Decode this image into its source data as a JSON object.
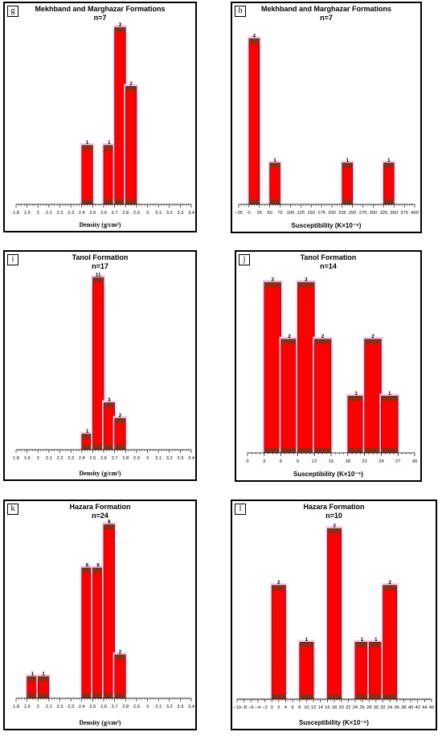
{
  "chart_data": [
    {
      "id": "g",
      "panel_label": "g",
      "type": "bar",
      "title": "Mekhband and Marghazar Formations",
      "subtitle": "n=7",
      "xlabel": "Density (g/cm³)",
      "x_ticks": [
        "1.8",
        "1.9",
        "2",
        "2.1",
        "2.2",
        "2.3",
        "2.4",
        "2.5",
        "2.6",
        "2.7",
        "2.8",
        "2.9",
        "3",
        "3.1",
        "3.2",
        "3.3",
        "3.4"
      ],
      "xlim": [
        1.8,
        3.4
      ],
      "ylim": [
        0,
        3
      ],
      "bars": [
        {
          "x0": 2.4,
          "x1": 2.5,
          "value": 1
        },
        {
          "x0": 2.6,
          "x1": 2.7,
          "value": 1
        },
        {
          "x0": 2.7,
          "x1": 2.8,
          "value": 3
        },
        {
          "x0": 2.8,
          "x1": 2.9,
          "value": 2
        }
      ],
      "bar_color": "#ff0000"
    },
    {
      "id": "h",
      "panel_label": "h",
      "type": "bar",
      "title": "Mekhband and Marghazar Formations",
      "subtitle": "n=7",
      "xlabel": "Susceptibility (K×10⁻⁵)",
      "x_ticks": [
        "−25",
        "0",
        "25",
        "50",
        "75",
        "100",
        "125",
        "150",
        "175",
        "200",
        "225",
        "250",
        "275",
        "300",
        "325",
        "350",
        "375",
        "400"
      ],
      "xlim": [
        -25,
        400
      ],
      "ylim": [
        0,
        4
      ],
      "bars": [
        {
          "x0": 0,
          "x1": 25,
          "value": 4
        },
        {
          "x0": 50,
          "x1": 75,
          "value": 1
        },
        {
          "x0": 225,
          "x1": 250,
          "value": 1
        },
        {
          "x0": 325,
          "x1": 350,
          "value": 1
        }
      ],
      "bar_color": "#ff0000"
    },
    {
      "id": "i",
      "panel_label": "i",
      "type": "bar",
      "title": "Tanol Formation",
      "subtitle": "n=17",
      "xlabel": "Density (g/cm³)",
      "x_ticks": [
        "1.8",
        "1.9",
        "2",
        "2.1",
        "2.2",
        "2.3",
        "2.4",
        "2.5",
        "2.6",
        "2.7",
        "2.8",
        "2.9",
        "3",
        "3.1",
        "3.2",
        "3.3",
        "3.4"
      ],
      "xlim": [
        1.8,
        3.4
      ],
      "ylim": [
        0,
        11
      ],
      "bars": [
        {
          "x0": 2.4,
          "x1": 2.5,
          "value": 1
        },
        {
          "x0": 2.5,
          "x1": 2.6,
          "value": 11
        },
        {
          "x0": 2.6,
          "x1": 2.7,
          "value": 3
        },
        {
          "x0": 2.7,
          "x1": 2.8,
          "value": 2
        }
      ],
      "bar_color": "#ff0000"
    },
    {
      "id": "j",
      "panel_label": "j",
      "type": "bar",
      "title": "Tanol Formation",
      "subtitle": "n=14",
      "xlabel": "Susceptibility (K×10⁻⁵)",
      "x_ticks": [
        "0",
        "3",
        "6",
        "9",
        "12",
        "15",
        "18",
        "21",
        "24",
        "27",
        "30"
      ],
      "xlim": [
        0,
        30
      ],
      "ylim": [
        0,
        3
      ],
      "bars": [
        {
          "x0": 3,
          "x1": 6,
          "value": 3
        },
        {
          "x0": 6,
          "x1": 9,
          "value": 2
        },
        {
          "x0": 9,
          "x1": 12,
          "value": 3
        },
        {
          "x0": 12,
          "x1": 15,
          "value": 2
        },
        {
          "x0": 18,
          "x1": 21,
          "value": 1
        },
        {
          "x0": 21,
          "x1": 24,
          "value": 2
        },
        {
          "x0": 24,
          "x1": 27,
          "value": 1
        }
      ],
      "bar_color": "#ff0000"
    },
    {
      "id": "k",
      "panel_label": "k",
      "type": "bar",
      "title": "Hazara Formation",
      "subtitle": "n=24",
      "xlabel": "Density (g/cm³)",
      "x_ticks": [
        "1.8",
        "1.9",
        "2",
        "2.1",
        "2.2",
        "2.3",
        "2.4",
        "2.5",
        "2.6",
        "2.7",
        "2.8",
        "2.9",
        "3",
        "3.1",
        "3.2",
        "3.3",
        "3.4"
      ],
      "xlim": [
        1.8,
        3.4
      ],
      "ylim": [
        0,
        8
      ],
      "bars": [
        {
          "x0": 1.9,
          "x1": 2.0,
          "value": 1
        },
        {
          "x0": 2.0,
          "x1": 2.1,
          "value": 1
        },
        {
          "x0": 2.4,
          "x1": 2.5,
          "value": 6
        },
        {
          "x0": 2.5,
          "x1": 2.6,
          "value": 6
        },
        {
          "x0": 2.6,
          "x1": 2.7,
          "value": 8
        },
        {
          "x0": 2.7,
          "x1": 2.8,
          "value": 2
        }
      ],
      "bar_color": "#ff0000"
    },
    {
      "id": "l",
      "panel_label": "l",
      "type": "bar",
      "title": "Hazara Formation",
      "subtitle": "n=10",
      "xlabel": "Susceptibility (K×10⁻⁵)",
      "x_ticks": [
        "−10",
        "−8",
        "−6",
        "−4",
        "−2",
        "0",
        "2",
        "4",
        "6",
        "8",
        "10",
        "12",
        "14",
        "16",
        "18",
        "20",
        "22",
        "24",
        "26",
        "28",
        "30",
        "32",
        "34",
        "36",
        "38",
        "40",
        "42",
        "44",
        "46"
      ],
      "xlim": [
        -10,
        46
      ],
      "ylim": [
        0,
        3
      ],
      "bars": [
        {
          "x0": 0,
          "x1": 4,
          "value": 2
        },
        {
          "x0": 8,
          "x1": 12,
          "value": 1
        },
        {
          "x0": 16,
          "x1": 20,
          "value": 3
        },
        {
          "x0": 24,
          "x1": 28,
          "value": 1
        },
        {
          "x0": 28,
          "x1": 32,
          "value": 1
        },
        {
          "x0": 32,
          "x1": 36,
          "value": 2
        }
      ],
      "bar_color": "#ff0000"
    }
  ]
}
